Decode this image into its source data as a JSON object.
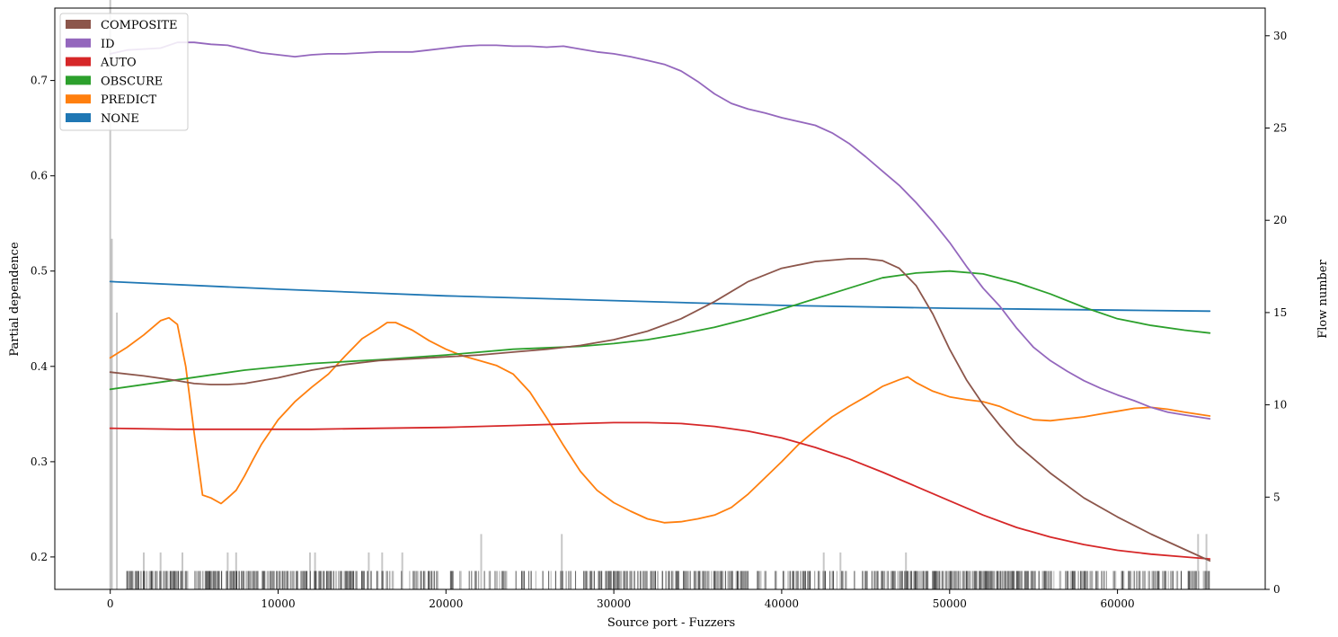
{
  "chart_data": {
    "type": "line",
    "title": "",
    "xlabel": "Source port - Fuzzers",
    "ylabel": "Partial dependence",
    "y2label": "Flow number",
    "xlim": [
      -3300,
      68800
    ],
    "ylim": [
      0.166,
      0.776
    ],
    "y2lim": [
      0,
      31.5
    ],
    "xticks": [
      0,
      10000,
      20000,
      30000,
      40000,
      50000,
      60000
    ],
    "yticks": [
      0.2,
      0.3,
      0.4,
      0.5,
      0.6,
      0.7
    ],
    "y2ticks": [
      0,
      5,
      10,
      15,
      20,
      25,
      30
    ],
    "legend_position": "top-left",
    "grid": false,
    "series": [
      {
        "name": "COMPOSITE",
        "color": "#8c564b",
        "x": [
          0,
          2000,
          4000,
          5000,
          6000,
          7000,
          8000,
          10000,
          12000,
          14000,
          16000,
          18000,
          20000,
          22000,
          24000,
          26000,
          28000,
          30000,
          32000,
          34000,
          36000,
          38000,
          40000,
          42000,
          44000,
          45000,
          46000,
          47000,
          48000,
          49000,
          50000,
          51000,
          52000,
          53000,
          54000,
          56000,
          58000,
          60000,
          62000,
          64000,
          65500
        ],
        "y": [
          0.394,
          0.39,
          0.385,
          0.382,
          0.381,
          0.381,
          0.382,
          0.388,
          0.396,
          0.402,
          0.406,
          0.408,
          0.41,
          0.412,
          0.415,
          0.418,
          0.422,
          0.428,
          0.437,
          0.45,
          0.468,
          0.489,
          0.503,
          0.51,
          0.513,
          0.513,
          0.511,
          0.503,
          0.485,
          0.455,
          0.418,
          0.386,
          0.36,
          0.338,
          0.318,
          0.288,
          0.262,
          0.242,
          0.224,
          0.208,
          0.196
        ]
      },
      {
        "name": "ID",
        "color": "#9467bd",
        "x": [
          0,
          1000,
          2000,
          3000,
          4000,
          5000,
          6000,
          7000,
          8000,
          9000,
          10000,
          11000,
          12000,
          13000,
          14000,
          15000,
          16000,
          17000,
          18000,
          19000,
          20000,
          21000,
          22000,
          23000,
          24000,
          25000,
          26000,
          27000,
          28000,
          29000,
          30000,
          31000,
          32000,
          33000,
          34000,
          35000,
          36000,
          37000,
          38000,
          39000,
          40000,
          41000,
          42000,
          43000,
          44000,
          45000,
          46000,
          47000,
          48000,
          49000,
          50000,
          51000,
          52000,
          53000,
          54000,
          55000,
          56000,
          57000,
          58000,
          59000,
          60000,
          61000,
          62000,
          63000,
          64000,
          65500
        ],
        "y": [
          0.728,
          0.732,
          0.733,
          0.734,
          0.74,
          0.74,
          0.738,
          0.737,
          0.733,
          0.729,
          0.727,
          0.725,
          0.727,
          0.728,
          0.728,
          0.729,
          0.73,
          0.73,
          0.73,
          0.732,
          0.734,
          0.736,
          0.737,
          0.737,
          0.736,
          0.736,
          0.735,
          0.736,
          0.733,
          0.73,
          0.728,
          0.725,
          0.721,
          0.717,
          0.71,
          0.699,
          0.686,
          0.676,
          0.67,
          0.666,
          0.661,
          0.657,
          0.653,
          0.645,
          0.634,
          0.62,
          0.605,
          0.59,
          0.572,
          0.552,
          0.53,
          0.505,
          0.482,
          0.463,
          0.44,
          0.42,
          0.406,
          0.395,
          0.385,
          0.377,
          0.37,
          0.364,
          0.357,
          0.352,
          0.349,
          0.345
        ]
      },
      {
        "name": "AUTO",
        "color": "#d62728",
        "x": [
          0,
          4000,
          8000,
          12000,
          16000,
          20000,
          24000,
          28000,
          30000,
          32000,
          34000,
          36000,
          38000,
          40000,
          42000,
          44000,
          46000,
          48000,
          50000,
          52000,
          54000,
          56000,
          58000,
          60000,
          62000,
          64000,
          65500
        ],
        "y": [
          0.335,
          0.334,
          0.334,
          0.334,
          0.335,
          0.336,
          0.338,
          0.34,
          0.341,
          0.341,
          0.34,
          0.337,
          0.332,
          0.325,
          0.315,
          0.303,
          0.289,
          0.274,
          0.259,
          0.244,
          0.231,
          0.221,
          0.213,
          0.207,
          0.203,
          0.2,
          0.198
        ]
      },
      {
        "name": "OBSCURE",
        "color": "#2ca02c",
        "x": [
          0,
          4000,
          8000,
          12000,
          16000,
          20000,
          24000,
          28000,
          30000,
          32000,
          34000,
          36000,
          38000,
          40000,
          42000,
          44000,
          46000,
          48000,
          50000,
          52000,
          54000,
          56000,
          58000,
          60000,
          62000,
          64000,
          65500
        ],
        "y": [
          0.376,
          0.386,
          0.396,
          0.403,
          0.407,
          0.412,
          0.418,
          0.421,
          0.424,
          0.428,
          0.434,
          0.441,
          0.45,
          0.46,
          0.471,
          0.482,
          0.493,
          0.498,
          0.5,
          0.497,
          0.488,
          0.476,
          0.462,
          0.45,
          0.443,
          0.438,
          0.435
        ]
      },
      {
        "name": "PREDICT",
        "color": "#ff7f0e",
        "x": [
          0,
          1000,
          2000,
          3000,
          3500,
          4000,
          4500,
          5000,
          5500,
          6000,
          6600,
          7000,
          7500,
          8000,
          8500,
          9000,
          10000,
          11000,
          12000,
          13000,
          14000,
          15000,
          16000,
          16500,
          17000,
          18000,
          19000,
          20000,
          21000,
          22000,
          23000,
          24000,
          25000,
          26000,
          27000,
          28000,
          29000,
          30000,
          31000,
          32000,
          33000,
          34000,
          35000,
          36000,
          37000,
          38000,
          39000,
          40000,
          41000,
          42000,
          43000,
          44000,
          45000,
          46000,
          47000,
          47500,
          48000,
          49000,
          50000,
          51000,
          52000,
          53000,
          54000,
          55000,
          56000,
          57000,
          58000,
          59000,
          60000,
          61000,
          62000,
          63000,
          64000,
          65500
        ],
        "y": [
          0.409,
          0.42,
          0.433,
          0.448,
          0.451,
          0.444,
          0.4,
          0.33,
          0.265,
          0.262,
          0.256,
          0.262,
          0.27,
          0.285,
          0.302,
          0.318,
          0.344,
          0.363,
          0.378,
          0.392,
          0.411,
          0.429,
          0.44,
          0.446,
          0.446,
          0.438,
          0.427,
          0.418,
          0.411,
          0.406,
          0.401,
          0.392,
          0.373,
          0.346,
          0.317,
          0.29,
          0.27,
          0.257,
          0.248,
          0.24,
          0.236,
          0.237,
          0.24,
          0.244,
          0.252,
          0.266,
          0.283,
          0.3,
          0.318,
          0.333,
          0.347,
          0.358,
          0.368,
          0.379,
          0.386,
          0.389,
          0.383,
          0.374,
          0.368,
          0.365,
          0.363,
          0.358,
          0.35,
          0.344,
          0.343,
          0.345,
          0.347,
          0.35,
          0.353,
          0.356,
          0.357,
          0.355,
          0.352,
          0.348
        ]
      },
      {
        "name": "NONE",
        "color": "#1f77b4",
        "x": [
          0,
          10000,
          20000,
          30000,
          40000,
          50000,
          60000,
          65500
        ],
        "y": [
          0.489,
          0.481,
          0.474,
          0.469,
          0.464,
          0.461,
          0.459,
          0.458
        ]
      }
    ],
    "histogram": {
      "color": "#000000",
      "ports": [
        0,
        100,
        400,
        2000,
        3000,
        4300,
        7000,
        7500,
        11900,
        12200,
        15400,
        16200,
        17400,
        22100,
        26900,
        42500,
        43500,
        47400,
        64800,
        65300
      ],
      "counts": [
        32,
        19,
        15,
        2,
        2,
        2,
        2,
        2,
        2,
        2,
        2,
        2,
        2,
        3,
        3,
        2,
        2,
        2,
        3,
        3
      ],
      "base_count": 1,
      "dense_ranges": [
        [
          1000,
          14500
        ],
        [
          14500,
          29000
        ],
        [
          29000,
          38000
        ],
        [
          38000,
          46000
        ],
        [
          46000,
          56000
        ],
        [
          56000,
          65500
        ]
      ],
      "density": [
        0.8,
        0.45,
        0.7,
        0.5,
        0.85,
        0.65
      ]
    }
  }
}
